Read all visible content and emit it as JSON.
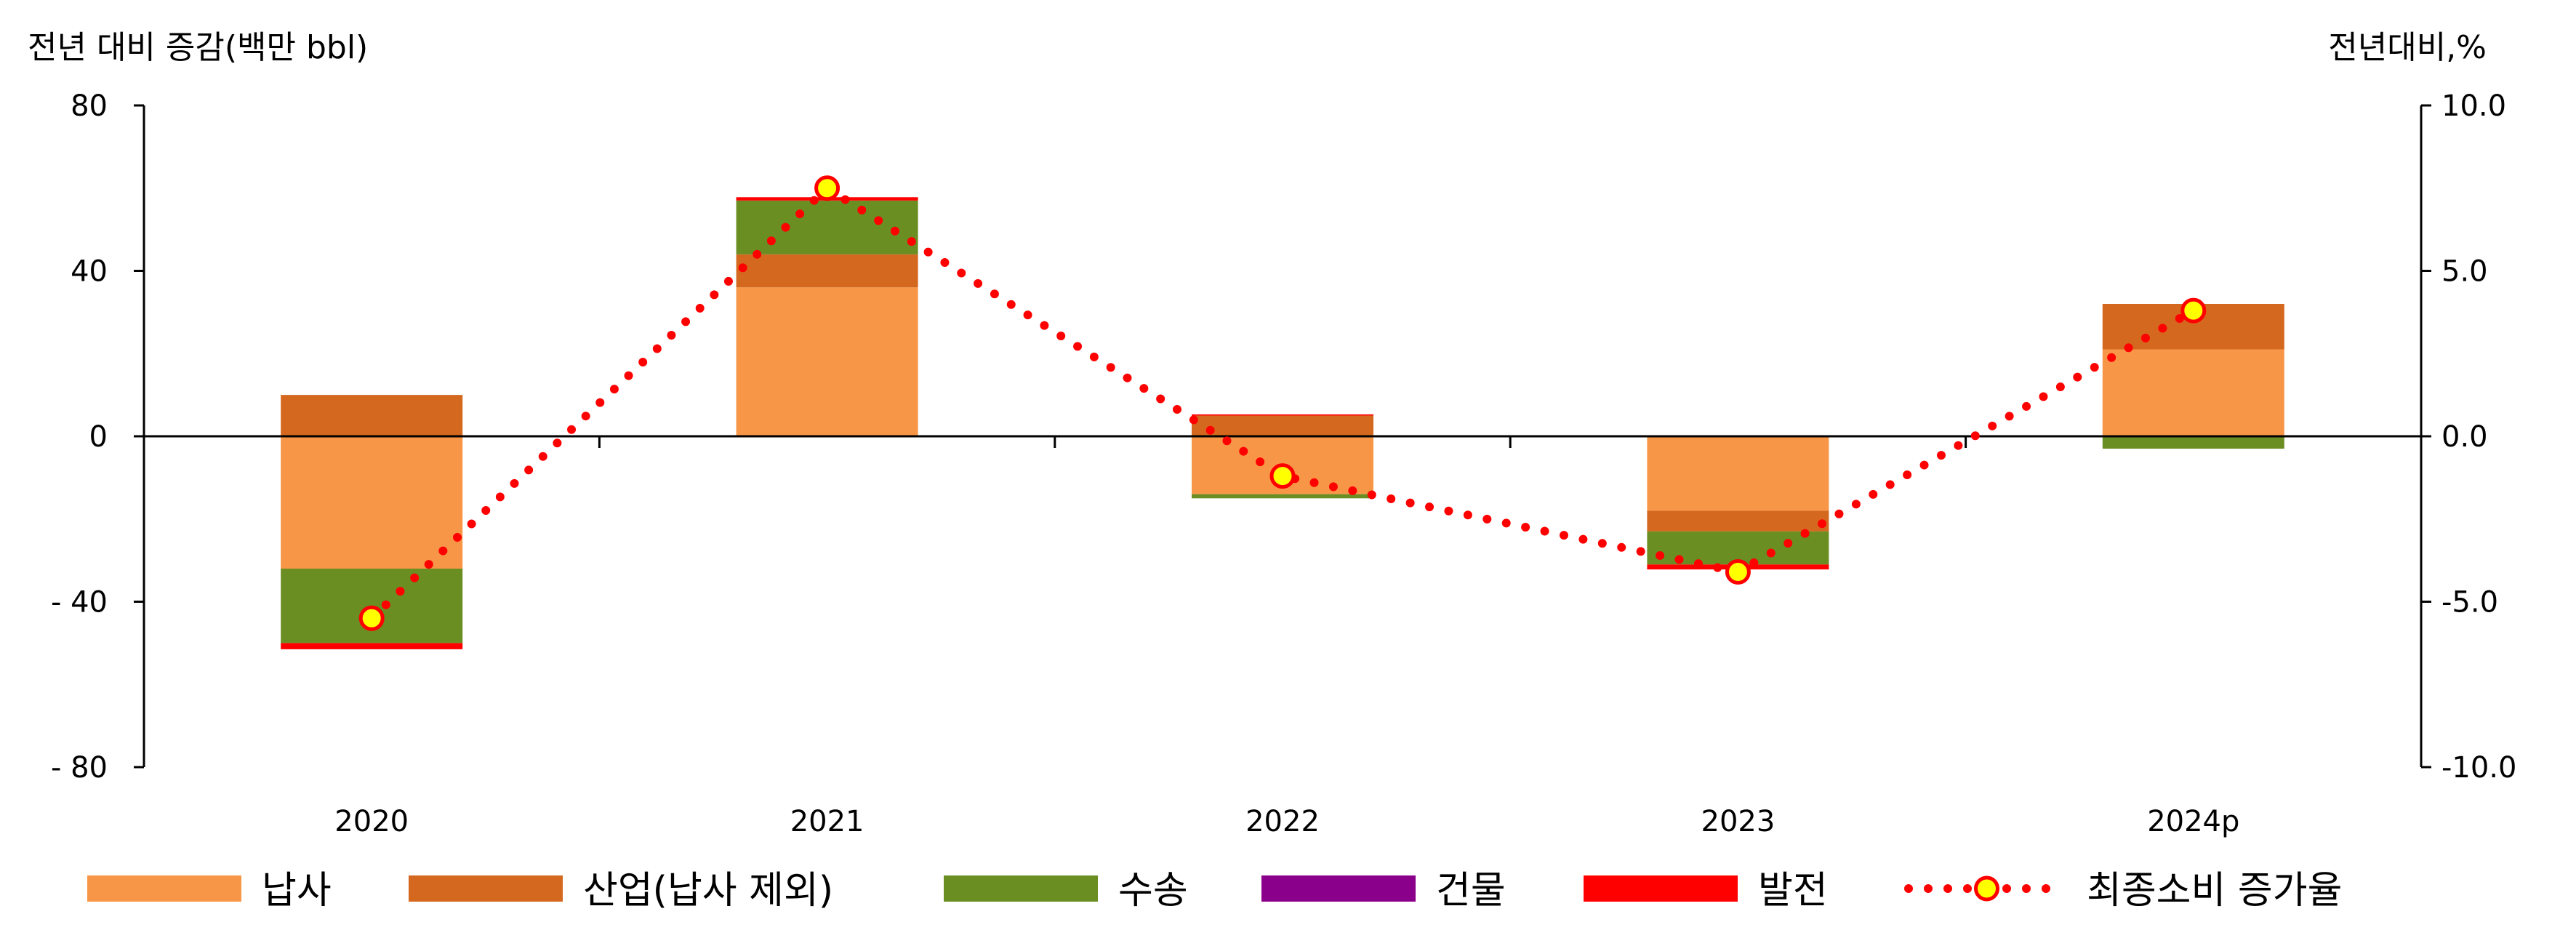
{
  "chart_data": {
    "type": "bar",
    "stacked": true,
    "left_axis_unit": "전년 대비 증감(백만 bbl)",
    "right_axis_unit": "전년대비,%",
    "categories": [
      "2020",
      "2021",
      "2022",
      "2023",
      "2024p"
    ],
    "y_left": {
      "min": -80,
      "max": 80,
      "ticks": [
        80,
        40,
        0,
        -40,
        -80
      ],
      "tick_labels": [
        "80",
        "40",
        "0",
        "- 40",
        "- 80"
      ]
    },
    "y_right": {
      "min": -10,
      "max": 10,
      "ticks": [
        10,
        5,
        0,
        -5,
        -10
      ],
      "tick_labels": [
        "10.0",
        "5.0",
        "0.0",
        "-5.0",
        "-10.0"
      ]
    },
    "series": [
      {
        "name": "납사",
        "color": "#F79646",
        "values": [
          -32,
          36,
          -14,
          -18,
          21
        ]
      },
      {
        "name": "산업(납사 제외)",
        "color": "#D4681E",
        "values": [
          10,
          8,
          5,
          -5,
          11
        ]
      },
      {
        "name": "수송",
        "color": "#6B8E23",
        "values": [
          -18,
          13,
          -1,
          -8,
          -3
        ]
      },
      {
        "name": "건물",
        "color": "#8B008B",
        "values": [
          0,
          0,
          0,
          0,
          0
        ]
      },
      {
        "name": "발전",
        "color": "#FF0000",
        "values": [
          -1.5,
          0.8,
          0.3,
          -1.2,
          0
        ]
      }
    ],
    "line_series": {
      "name": "최종소비 증가율",
      "axis": "right",
      "line_color": "#FF0000",
      "marker_color": "#FFFF00",
      "values": [
        -5.5,
        7.5,
        -1.2,
        -4.1,
        3.8
      ]
    },
    "legend_position": "bottom"
  }
}
